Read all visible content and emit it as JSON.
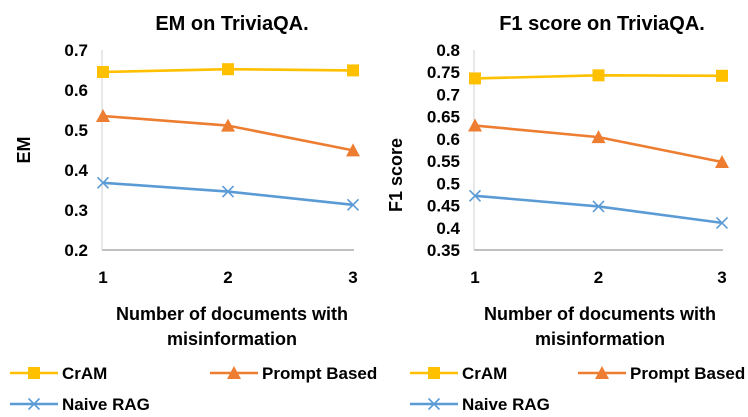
{
  "chart_data": [
    {
      "type": "line",
      "title": "EM on TriviaQA.",
      "xlabel": [
        "Number of documents with",
        "misinformation"
      ],
      "ylabel": "EM",
      "categories": [
        "1",
        "2",
        "3"
      ],
      "ylim": [
        0.2,
        0.7
      ],
      "yticks": [
        "0.2",
        "0.3",
        "0.4",
        "0.5",
        "0.6",
        "0.7"
      ],
      "ytick_values": [
        0.2,
        0.3,
        0.4,
        0.5,
        0.6,
        0.7
      ],
      "grid": false,
      "legend_position": "bottom",
      "series": [
        {
          "name": "CrAM",
          "values": [
            0.645,
            0.652,
            0.649
          ],
          "color": "#FFC000",
          "marker": "square"
        },
        {
          "name": "Prompt Based",
          "values": [
            0.535,
            0.511,
            0.449
          ],
          "color": "#ED7D31",
          "marker": "triangle"
        },
        {
          "name": "Naive RAG",
          "values": [
            0.368,
            0.346,
            0.313
          ],
          "color": "#5B9BD5",
          "marker": "x"
        }
      ]
    },
    {
      "type": "line",
      "title": "F1 score on TriviaQA.",
      "xlabel": [
        "Number of documents with",
        "misinformation"
      ],
      "ylabel": "F1 score",
      "categories": [
        "1",
        "2",
        "3"
      ],
      "ylim": [
        0.35,
        0.8
      ],
      "yticks": [
        "0.35",
        "0.4",
        "0.45",
        "0.5",
        "0.55",
        "0.6",
        "0.65",
        "0.7",
        "0.75",
        "0.8"
      ],
      "ytick_values": [
        0.35,
        0.4,
        0.45,
        0.5,
        0.55,
        0.6,
        0.65,
        0.7,
        0.75,
        0.8
      ],
      "grid": false,
      "legend_position": "bottom",
      "series": [
        {
          "name": "CrAM",
          "values": [
            0.736,
            0.743,
            0.742
          ],
          "color": "#FFC000",
          "marker": "square"
        },
        {
          "name": "Prompt Based",
          "values": [
            0.63,
            0.604,
            0.548
          ],
          "color": "#ED7D31",
          "marker": "triangle"
        },
        {
          "name": "Naive RAG",
          "values": [
            0.472,
            0.448,
            0.411
          ],
          "color": "#5B9BD5",
          "marker": "x"
        }
      ]
    }
  ]
}
